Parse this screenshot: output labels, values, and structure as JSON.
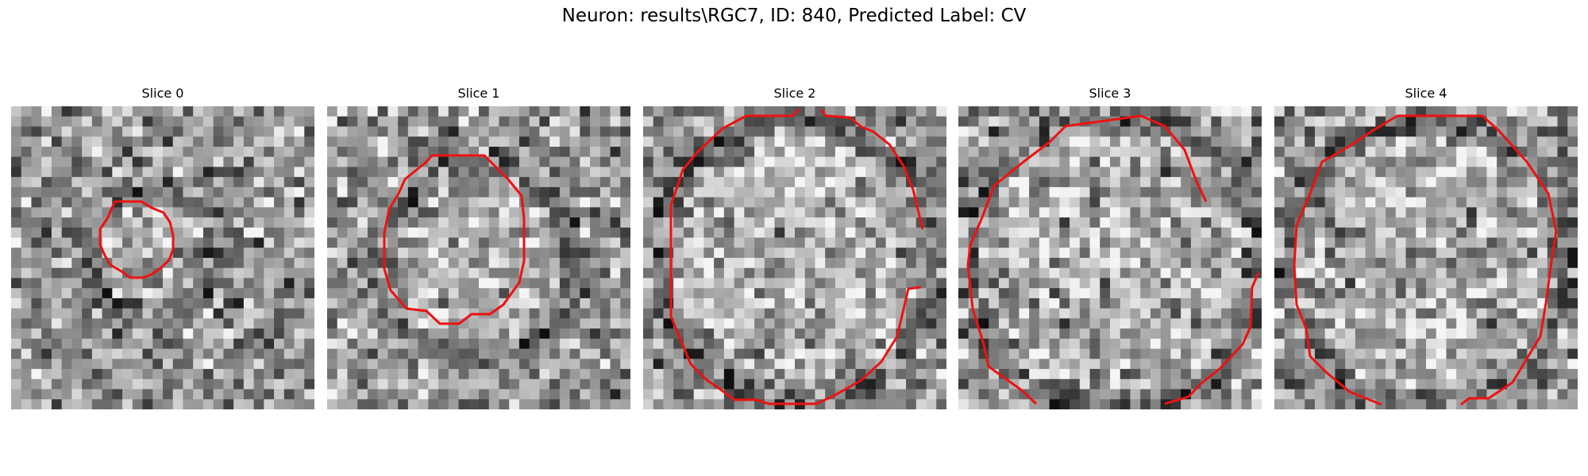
{
  "figure": {
    "title": "Neuron: results\\RGC7, ID: 840, Predicted Label: CV"
  },
  "panels": [
    {
      "title": "Slice 0"
    },
    {
      "title": "Slice 1"
    },
    {
      "title": "Slice 2"
    },
    {
      "title": "Slice 3"
    },
    {
      "title": "Slice 4"
    }
  ],
  "colors": {
    "contour": "#ee1111",
    "background": "#ffffff"
  }
}
